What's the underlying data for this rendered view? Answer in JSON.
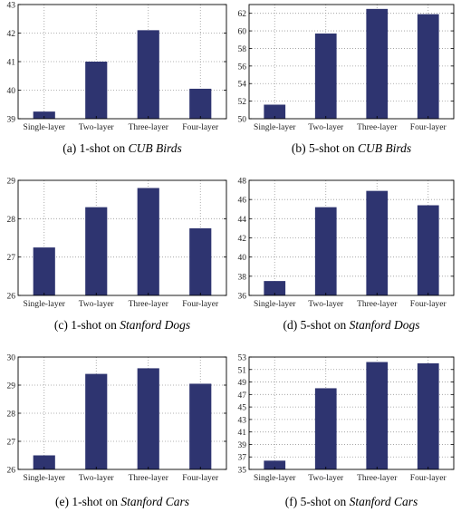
{
  "chart_data": [
    {
      "type": "bar",
      "categories": [
        "Single-layer",
        "Two-layer",
        "Three-layer",
        "Four-layer"
      ],
      "values": [
        39.25,
        41.0,
        42.1,
        40.05
      ],
      "ylim": [
        39,
        43
      ],
      "yticks": [
        39,
        40,
        41,
        42,
        43
      ],
      "ytick_labels": [
        "39",
        "40",
        "41",
        "42",
        "43"
      ],
      "caption": {
        "prefix": "(a) 1-shot on ",
        "dataset": "CUB Birds"
      },
      "grid": true
    },
    {
      "type": "bar",
      "categories": [
        "Single-layer",
        "Two-layer",
        "Three-layer",
        "Four-layer"
      ],
      "values": [
        51.6,
        59.7,
        62.5,
        61.9
      ],
      "ylim": [
        50,
        63
      ],
      "yticks": [
        50,
        52,
        54,
        56,
        58,
        60,
        62
      ],
      "ytick_labels": [
        "50",
        "52",
        "54",
        "56",
        "58",
        "60",
        "62"
      ],
      "caption": {
        "prefix": "(b) 5-shot on ",
        "dataset": "CUB Birds"
      },
      "grid": true
    },
    {
      "type": "bar",
      "categories": [
        "Single-layer",
        "Two-layer",
        "Three-layer",
        "Four-layer"
      ],
      "values": [
        27.25,
        28.3,
        28.8,
        27.75
      ],
      "ylim": [
        26,
        29
      ],
      "yticks": [
        26,
        27,
        28,
        29
      ],
      "ytick_labels": [
        "26",
        "27",
        "28",
        "29"
      ],
      "caption": {
        "prefix": "(c) 1-shot on ",
        "dataset": "Stanford Dogs"
      },
      "grid": true
    },
    {
      "type": "bar",
      "categories": [
        "Single-layer",
        "Two-layer",
        "Three-layer",
        "Four-layer"
      ],
      "values": [
        37.5,
        45.2,
        46.9,
        45.4
      ],
      "ylim": [
        36,
        48
      ],
      "yticks": [
        36,
        38,
        40,
        42,
        44,
        46,
        48
      ],
      "ytick_labels": [
        "36",
        "38",
        "40",
        "42",
        "44",
        "46",
        "48"
      ],
      "caption": {
        "prefix": "(d) 5-shot on ",
        "dataset": "Stanford Dogs"
      },
      "grid": true
    },
    {
      "type": "bar",
      "categories": [
        "Single-layer",
        "Two-layer",
        "Three-layer",
        "Four-layer"
      ],
      "values": [
        26.5,
        29.4,
        29.6,
        29.05
      ],
      "ylim": [
        26,
        30
      ],
      "yticks": [
        26,
        27,
        28,
        29,
        30
      ],
      "ytick_labels": [
        "26",
        "27",
        "28",
        "29",
        "30"
      ],
      "caption": {
        "prefix": "(e) 1-shot on ",
        "dataset": "Stanford Cars"
      },
      "grid": true
    },
    {
      "type": "bar",
      "categories": [
        "Single-layer",
        "Two-layer",
        "Three-layer",
        "Four-layer"
      ],
      "values": [
        36.4,
        48.0,
        52.2,
        52.0
      ],
      "ylim": [
        35,
        53
      ],
      "yticks": [
        35,
        37,
        39,
        41,
        43,
        45,
        47,
        49,
        51,
        53
      ],
      "ytick_labels": [
        "35",
        "37",
        "39",
        "41",
        "43",
        "45",
        "47",
        "49",
        "51",
        "53"
      ],
      "caption": {
        "prefix": "(f) 5-shot on ",
        "dataset": "Stanford Cars"
      },
      "grid": true
    }
  ],
  "colors": {
    "bar": "#2e3470",
    "axis": "#000000",
    "grid": "#9a9a9a"
  }
}
